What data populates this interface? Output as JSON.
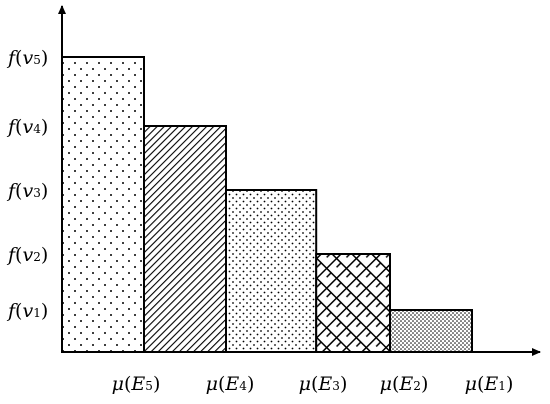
{
  "chart_data": {
    "type": "bar",
    "title": "",
    "xlabel": "",
    "ylabel": "",
    "y_tick_labels": [
      {
        "f": "f",
        "open": "(",
        "var": "v",
        "sub": "1",
        "close": ")"
      },
      {
        "f": "f",
        "open": "(",
        "var": "v",
        "sub": "2",
        "close": ")"
      },
      {
        "f": "f",
        "open": "(",
        "var": "v",
        "sub": "3",
        "close": ")"
      },
      {
        "f": "f",
        "open": "(",
        "var": "v",
        "sub": "4",
        "close": ")"
      },
      {
        "f": "f",
        "open": "(",
        "var": "v",
        "sub": "5",
        "close": ")"
      }
    ],
    "x_tick_labels": [
      {
        "mu": "μ",
        "open": "(",
        "var": "E",
        "sub": "5",
        "close": ")"
      },
      {
        "mu": "μ",
        "open": "(",
        "var": "E",
        "sub": "4",
        "close": ")"
      },
      {
        "mu": "μ",
        "open": "(",
        "var": "E",
        "sub": "3",
        "close": ")"
      },
      {
        "mu": "μ",
        "open": "(",
        "var": "E",
        "sub": "2",
        "close": ")"
      },
      {
        "mu": "μ",
        "open": "(",
        "var": "E",
        "sub": "1",
        "close": ")"
      }
    ],
    "bars": [
      {
        "level": 5,
        "x_start": 0,
        "x_end": 1,
        "pattern": "sparse-dots"
      },
      {
        "level": 4,
        "x_start": 1,
        "x_end": 2,
        "pattern": "diagonal-hatch"
      },
      {
        "level": 3,
        "x_start": 2,
        "x_end": 3.1,
        "pattern": "fine-dots"
      },
      {
        "level": 2,
        "x_start": 3.1,
        "x_end": 4.0,
        "pattern": "crosshatch"
      },
      {
        "level": 1,
        "x_start": 4.0,
        "x_end": 5.0,
        "pattern": "dense-dots"
      }
    ]
  }
}
